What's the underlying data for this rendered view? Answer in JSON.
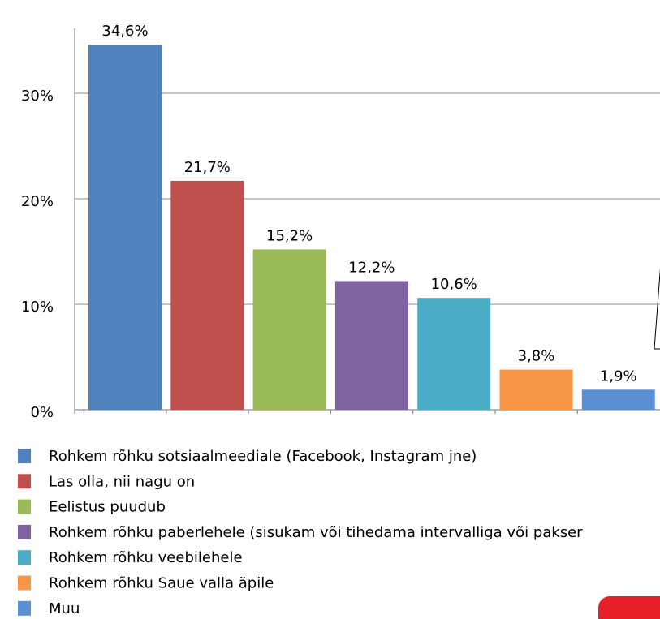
{
  "chart_data": {
    "type": "bar",
    "categories": [
      "Rohkem rõhku sotsiaalmeediale (Facebook, Instagram jne)",
      "Las olla, nii nagu on",
      "Eelistus puudub",
      "Rohkem rõhku paberlehele (sisukam või tihedama intervalliga või pakser",
      "Rohkem rõhku veebilehele",
      "Rohkem rõhku Saue valla äpile",
      "Muu"
    ],
    "values": [
      34.6,
      21.7,
      15.2,
      12.2,
      10.6,
      3.8,
      1.9
    ],
    "value_labels": [
      "34,6%",
      "21,7%",
      "15,2%",
      "12,2%",
      "10,6%",
      "3,8%",
      "1,9%"
    ],
    "colors": [
      "#4f81bd",
      "#c0504d",
      "#9bbb59",
      "#8064a2",
      "#4bacc6",
      "#f79646",
      "#5b8fd3"
    ],
    "ylim": [
      0,
      36
    ],
    "yticks": [
      {
        "value": 0,
        "label": "0%"
      },
      {
        "value": 10,
        "label": "10%"
      },
      {
        "value": 20,
        "label": "20%"
      },
      {
        "value": 30,
        "label": "30%"
      }
    ],
    "grid": true,
    "legend": "bottom"
  }
}
